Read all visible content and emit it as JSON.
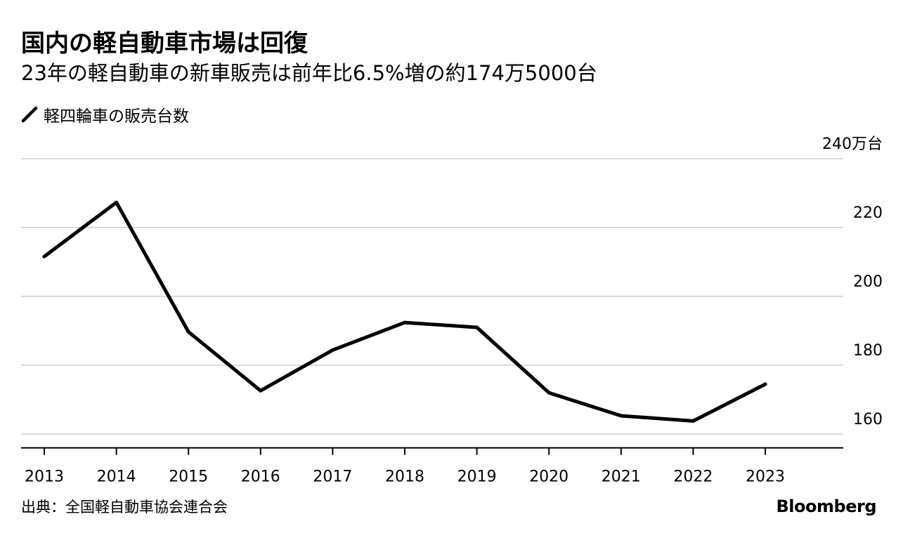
{
  "title": "国内の軽自動車市場は回復",
  "subtitle": "23年の軽自動車の新車販売は前年比6.5%増の約174万5000台",
  "legend": {
    "label": "軽四輪車の販売台数",
    "icon": "diagonal-line-icon"
  },
  "source": "出典：全国軽自動車協会連合会",
  "brand": "Bloomberg",
  "colors": {
    "line": "#000000",
    "grid": "#d9d9d9",
    "axis": "#000000",
    "background": "#ffffff"
  },
  "chart_data": {
    "type": "line",
    "title": "国内の軽自動車市場は回復",
    "subtitle": "23年の軽自動車の新車販売は前年比6.5%増の約174万5000台",
    "xlabel": "",
    "ylabel": "",
    "x": [
      "2013",
      "2014",
      "2015",
      "2016",
      "2017",
      "2018",
      "2019",
      "2020",
      "2021",
      "2022",
      "2023"
    ],
    "series": [
      {
        "name": "軽四輪車の販売台数",
        "values": [
          211.6,
          227.3,
          189.7,
          172.6,
          184.4,
          192.4,
          191.0,
          172.0,
          165.3,
          163.8,
          174.5
        ]
      }
    ],
    "ylim": [
      156,
      240
    ],
    "yticks": [
      160,
      180,
      200,
      220,
      240
    ],
    "ytick_labels": [
      "160",
      "180",
      "200",
      "220",
      "240万台"
    ],
    "grid": true,
    "legend_position": "top-left",
    "y_axis_side": "right"
  }
}
